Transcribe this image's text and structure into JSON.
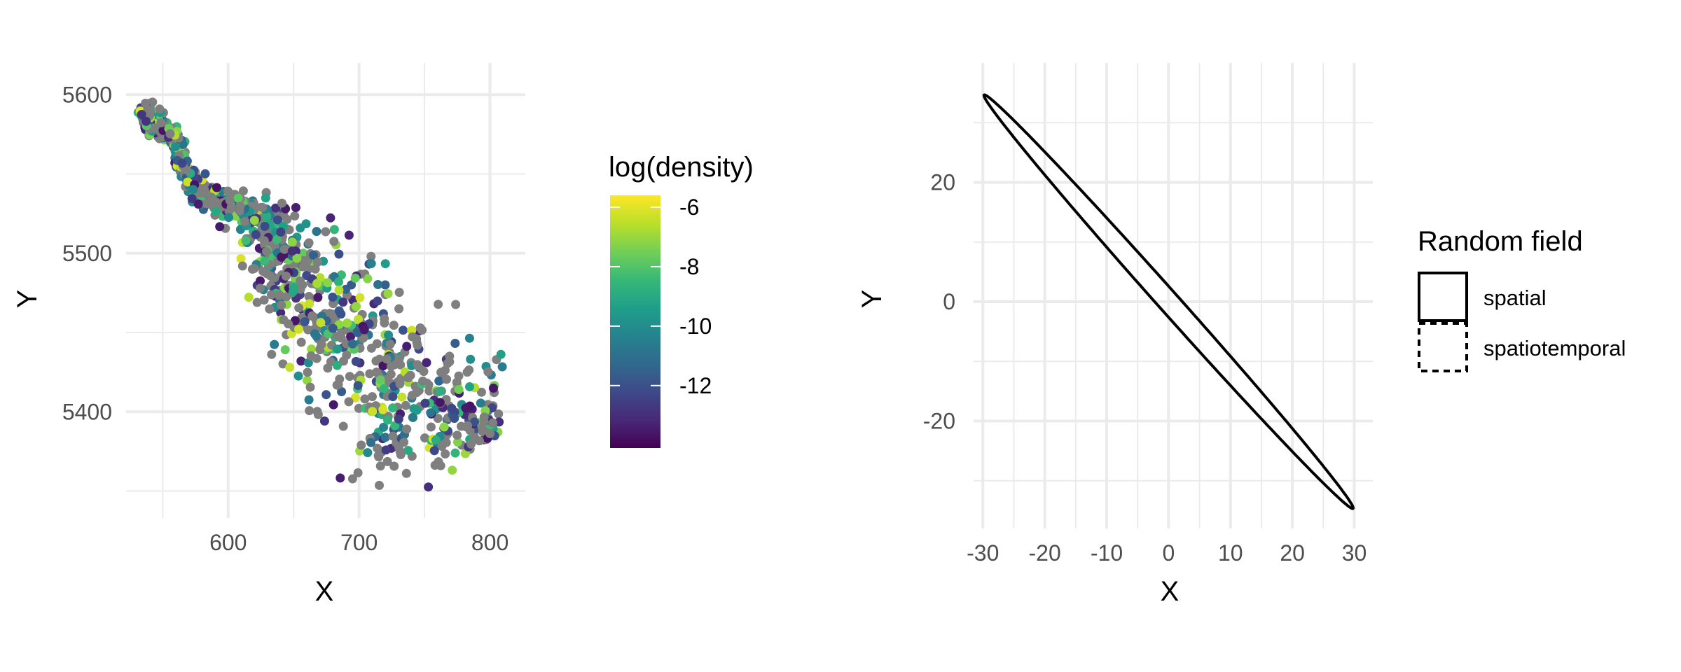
{
  "chart_data": [
    {
      "type": "scatter",
      "xlabel": "X",
      "ylabel": "Y",
      "xlim": [
        522,
        827
      ],
      "ylim": [
        5333,
        5620
      ],
      "x_ticks": [
        600,
        700,
        800
      ],
      "x_tick_labels": [
        "600",
        "700",
        "800"
      ],
      "y_ticks": [
        5400,
        5500,
        5600
      ],
      "y_tick_labels": [
        "5400",
        "5500",
        "5600"
      ],
      "grid": true,
      "missing_color": "#7f7f7f",
      "legend": {
        "title": "log(density)",
        "type": "colorbar",
        "range": [
          -14.1,
          -5.6
        ],
        "ticks": [
          -6,
          -8,
          -10,
          -12
        ],
        "tick_labels": [
          "-6",
          "-8",
          "-10",
          "-12"
        ],
        "palette": [
          "#440154",
          "#482878",
          "#3e4989",
          "#31688e",
          "#26828e",
          "#1f9e89",
          "#35b779",
          "#6ece58",
          "#b5de2b",
          "#fde725"
        ],
        "position": "right"
      },
      "path": [
        [
          534,
          5592
        ],
        [
          545,
          5580
        ],
        [
          560,
          5573
        ],
        [
          565,
          5555
        ],
        [
          575,
          5540
        ],
        [
          595,
          5532
        ],
        [
          618,
          5525
        ],
        [
          632,
          5512
        ],
        [
          640,
          5495
        ],
        [
          652,
          5485
        ],
        [
          665,
          5470
        ],
        [
          680,
          5455
        ],
        [
          695,
          5440
        ],
        [
          712,
          5425
        ],
        [
          728,
          5410
        ],
        [
          745,
          5398
        ],
        [
          765,
          5392
        ],
        [
          785,
          5390
        ],
        [
          805,
          5386
        ]
      ],
      "spread": [
        4,
        4,
        3,
        3,
        4,
        6,
        8,
        12,
        14,
        17,
        20,
        23,
        25,
        28,
        30,
        33,
        30,
        20,
        8
      ],
      "points_count": 1200,
      "colored_fraction": 0.55
    },
    {
      "type": "line",
      "xlabel": "X",
      "ylabel": "Y",
      "xlim": [
        -31.5,
        33
      ],
      "ylim": [
        -38,
        40
      ],
      "x_ticks": [
        -30,
        -20,
        -10,
        0,
        10,
        20,
        30
      ],
      "x_tick_labels": [
        "-30",
        "-20",
        "-10",
        "0",
        "10",
        "20",
        "30"
      ],
      "y_ticks": [
        -20,
        0,
        20
      ],
      "y_tick_labels": [
        "-20",
        "0",
        "20"
      ],
      "grid": true,
      "series": [
        {
          "name": "spatial",
          "shape": "ellipse",
          "center": [
            0,
            0
          ],
          "semi_major": 45.7,
          "semi_minor": 1.7,
          "angle_deg": -49.3,
          "line": "solid",
          "color": "#000000"
        }
      ],
      "legend": {
        "title": "Random field",
        "position": "right",
        "items": [
          {
            "label": "spatial",
            "line": "solid"
          },
          {
            "label": "spatiotemporal",
            "line": "dashed"
          }
        ]
      }
    }
  ]
}
